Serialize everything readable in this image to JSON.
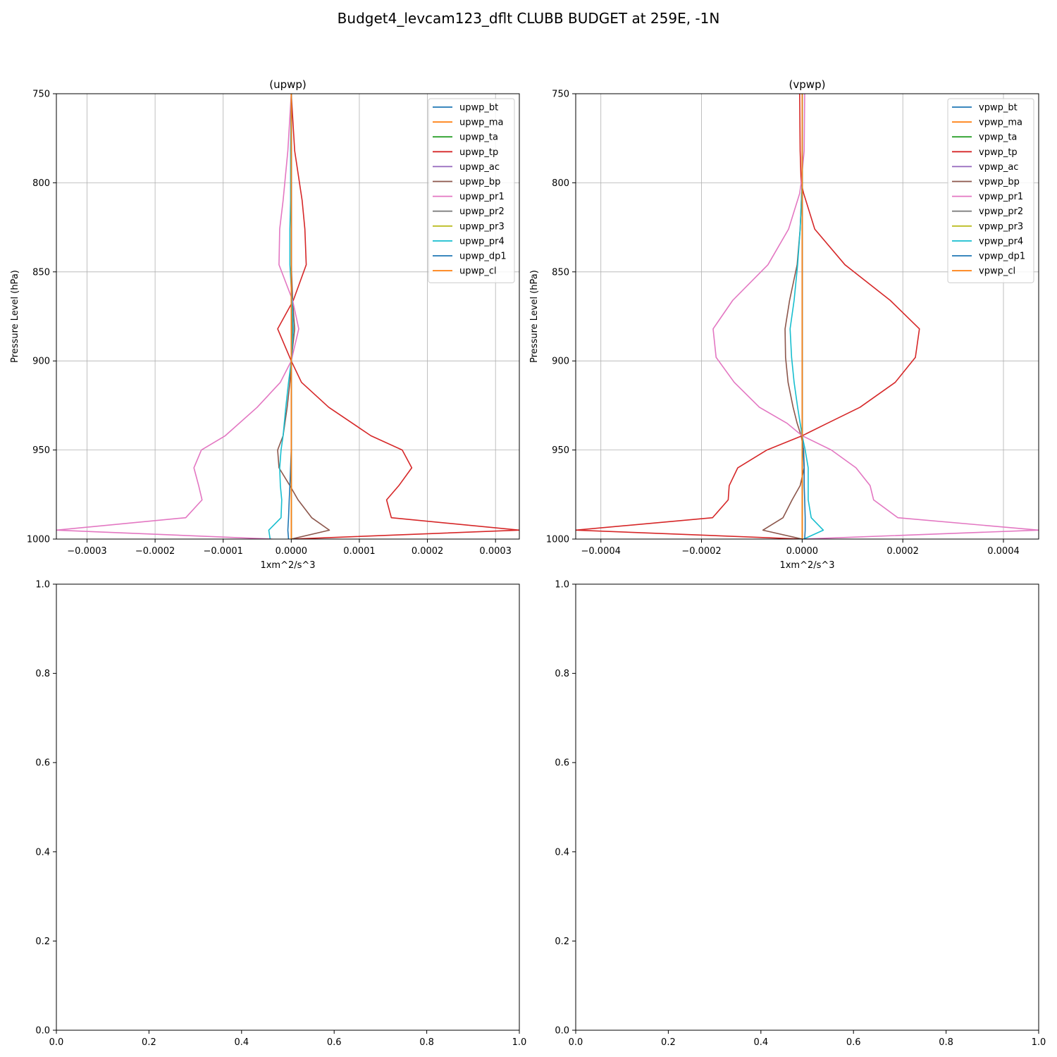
{
  "figure": {
    "title": "Budget4_levcam123_dflt CLUBB BUDGET at 259E, -1N"
  },
  "chart_data": [
    {
      "type": "line",
      "title": "(upwp)",
      "xlabel": "1xm^2/s^3",
      "ylabel": "Pressure Level (hPa)",
      "xlim": [
        -0.000345,
        0.000335
      ],
      "ylim": [
        1000,
        750
      ],
      "y_inverted": true,
      "x_ticks": [
        -0.0003,
        -0.0002,
        -0.0001,
        0.0,
        0.0001,
        0.0002,
        0.0003
      ],
      "x_tick_labels": [
        "−0.0003",
        "−0.0002",
        "−0.0001",
        "0.0000",
        "0.0001",
        "0.0002",
        "0.0003"
      ],
      "y_ticks": [
        750,
        800,
        850,
        900,
        950,
        1000
      ],
      "y_tick_labels": [
        "750",
        "800",
        "850",
        "900",
        "950",
        "1000"
      ],
      "grid": true,
      "legend_position": "upper right",
      "levels": [
        750,
        782,
        810,
        826,
        846,
        866,
        882,
        900,
        912,
        926,
        942,
        950,
        960,
        970,
        978,
        988,
        995,
        1000
      ],
      "series": [
        {
          "name": "upwp_bt",
          "color": "#1f77b4",
          "values": [
            0,
            0,
            0,
            0,
            0,
            0,
            0,
            0,
            0,
            0,
            0,
            0,
            0,
            0,
            0,
            0,
            0,
            0
          ]
        },
        {
          "name": "upwp_ma",
          "color": "#ff7f0e",
          "values": [
            0,
            0,
            0,
            0,
            0,
            0,
            0,
            0,
            0,
            0,
            0,
            0,
            0,
            0,
            0,
            0,
            0,
            0
          ]
        },
        {
          "name": "upwp_ta",
          "color": "#2ca02c",
          "values": [
            0,
            0,
            0,
            0,
            0,
            0,
            0,
            0,
            0,
            0,
            0,
            0,
            0,
            0,
            0,
            0,
            0,
            0
          ]
        },
        {
          "name": "upwp_tp",
          "color": "#d62728",
          "values": [
            0,
            5e-06,
            1.6e-05,
            2e-05,
            2.2e-05,
            3e-06,
            -2e-05,
            0,
            1.5e-05,
            5.5e-05,
            0.000117,
            0.000163,
            0.000177,
            0.000158,
            0.00014,
            0.000147,
            0.000335,
            0
          ]
        },
        {
          "name": "upwp_ac",
          "color": "#9467bd",
          "values": [
            0,
            0,
            0,
            0,
            0,
            0,
            0,
            0,
            0,
            0,
            0,
            0,
            0,
            0,
            0,
            0,
            0,
            0
          ]
        },
        {
          "name": "upwp_bp",
          "color": "#8c564b",
          "values": [
            0,
            0,
            0,
            0,
            0,
            2e-06,
            5e-06,
            0,
            -2e-06,
            -6e-06,
            -1.2e-05,
            -2e-05,
            -1.8e-05,
            -2e-06,
            1e-05,
            3e-05,
            5.6e-05,
            0
          ]
        },
        {
          "name": "upwp_pr1",
          "color": "#e377c2",
          "values": [
            0,
            -5e-06,
            -1.2e-05,
            -1.7e-05,
            -1.8e-05,
            2e-06,
            1.1e-05,
            0,
            -1.6e-05,
            -5e-05,
            -9.7e-05,
            -0.000132,
            -0.000143,
            -0.000136,
            -0.000131,
            -0.000155,
            -0.000345,
            -2.8e-05
          ]
        },
        {
          "name": "upwp_pr2",
          "color": "#7f7f7f",
          "values": [
            0,
            0,
            0,
            0,
            0,
            0,
            2e-06,
            0,
            0,
            0,
            0,
            0,
            0,
            0,
            0,
            0,
            0,
            0
          ]
        },
        {
          "name": "upwp_pr3",
          "color": "#bcbd22",
          "values": [
            0,
            0,
            0,
            0,
            0,
            0,
            0,
            0,
            0,
            0,
            0,
            0,
            0,
            0,
            0,
            0,
            0,
            0
          ]
        },
        {
          "name": "upwp_pr4",
          "color": "#17becf",
          "values": [
            0,
            -1e-06,
            -1e-06,
            -2e-06,
            -2e-06,
            1e-06,
            3e-06,
            0,
            -4e-06,
            -8e-06,
            -1.2e-05,
            -1.5e-05,
            -1.7e-05,
            -1.6e-05,
            -1.4e-05,
            -1.5e-05,
            -3.3e-05,
            -3.1e-05
          ]
        },
        {
          "name": "upwp_dp1",
          "color": "#1f77b4",
          "values": [
            0,
            0,
            0,
            0,
            0,
            0,
            0,
            0,
            0,
            0,
            0,
            0,
            -1e-06,
            -2e-06,
            -3e-06,
            -4e-06,
            -5e-06,
            -4e-06
          ]
        },
        {
          "name": "upwp_cl",
          "color": "#ff7f0e",
          "values": [
            0,
            0,
            0,
            0,
            0,
            0,
            0,
            0,
            0,
            0,
            0,
            0,
            0,
            0,
            0,
            0,
            0,
            0
          ]
        }
      ]
    },
    {
      "type": "line",
      "title": "(vpwp)",
      "xlabel": "1xm^2/s^3",
      "ylabel": "Pressure Level (hPa)",
      "xlim": [
        -0.00045,
        0.00047
      ],
      "ylim": [
        1000,
        750
      ],
      "y_inverted": true,
      "x_ticks": [
        -0.0004,
        -0.0002,
        0.0,
        0.0002,
        0.0004
      ],
      "x_tick_labels": [
        "−0.0004",
        "−0.0002",
        "0.0000",
        "0.0002",
        "0.0004"
      ],
      "y_ticks": [
        750,
        800,
        850,
        900,
        950,
        1000
      ],
      "y_tick_labels": [
        "750",
        "800",
        "850",
        "900",
        "950",
        "1000"
      ],
      "grid": true,
      "legend_position": "upper right",
      "levels": [
        750,
        782,
        800,
        806,
        826,
        846,
        866,
        882,
        898,
        912,
        926,
        935,
        942,
        950,
        960,
        970,
        978,
        988,
        995,
        1000
      ],
      "series": [
        {
          "name": "vpwp_bt",
          "color": "#1f77b4",
          "values": [
            0,
            0,
            0,
            0,
            0,
            0,
            0,
            0,
            0,
            0,
            0,
            0,
            0,
            0,
            0,
            0,
            0,
            0,
            0,
            0
          ]
        },
        {
          "name": "vpwp_ma",
          "color": "#ff7f0e",
          "values": [
            0,
            0,
            0,
            0,
            0,
            0,
            0,
            0,
            0,
            0,
            0,
            0,
            0,
            0,
            0,
            0,
            0,
            0,
            0,
            0
          ]
        },
        {
          "name": "vpwp_ta",
          "color": "#2ca02c",
          "values": [
            0,
            0,
            0,
            0,
            0,
            0,
            0,
            0,
            0,
            0,
            0,
            0,
            0,
            0,
            0,
            0,
            0,
            0,
            0,
            0
          ]
        },
        {
          "name": "vpwp_tp",
          "color": "#d62728",
          "values": [
            -5e-06,
            -4e-06,
            -2e-06,
            3e-06,
            2.5e-05,
            8.5e-05,
            0.000175,
            0.000233,
            0.000225,
            0.000185,
            0.000115,
            5e-05,
            0,
            -7e-05,
            -0.000128,
            -0.000145,
            -0.000147,
            -0.000178,
            -0.00045,
            0
          ]
        },
        {
          "name": "vpwp_ac",
          "color": "#9467bd",
          "values": [
            0,
            0,
            0,
            0,
            0,
            0,
            0,
            0,
            0,
            0,
            0,
            0,
            0,
            0,
            0,
            0,
            0,
            0,
            0,
            0
          ]
        },
        {
          "name": "vpwp_bp",
          "color": "#8c564b",
          "values": [
            0,
            0,
            0,
            -1e-06,
            -4e-06,
            -1e-05,
            -2.5e-05,
            -3.4e-05,
            -3.3e-05,
            -2.8e-05,
            -1.8e-05,
            -1e-05,
            -2e-06,
            3e-06,
            4e-06,
            -4e-06,
            -2e-05,
            -3.8e-05,
            -7.8e-05,
            0
          ]
        },
        {
          "name": "vpwp_pr1",
          "color": "#e377c2",
          "values": [
            5e-06,
            4e-06,
            -2e-06,
            -5e-06,
            -2.7e-05,
            -6.8e-05,
            -0.000138,
            -0.000177,
            -0.000171,
            -0.000135,
            -8.5e-05,
            -3e-05,
            0,
            5.8e-05,
            0.000107,
            0.000135,
            0.000142,
            0.00019,
            0.00047,
            0
          ]
        },
        {
          "name": "vpwp_pr2",
          "color": "#7f7f7f",
          "values": [
            0,
            0,
            0,
            0,
            0,
            0,
            0,
            0,
            0,
            0,
            0,
            0,
            0,
            0,
            0,
            0,
            0,
            0,
            0,
            0
          ]
        },
        {
          "name": "vpwp_pr3",
          "color": "#bcbd22",
          "values": [
            0,
            0,
            0,
            0,
            0,
            0,
            0,
            0,
            0,
            0,
            0,
            0,
            0,
            0,
            0,
            0,
            0,
            0,
            0,
            0
          ]
        },
        {
          "name": "vpwp_pr4",
          "color": "#17becf",
          "values": [
            0,
            0,
            0,
            -1e-06,
            -4e-06,
            -9e-06,
            -1.6e-05,
            -2.4e-05,
            -2.1e-05,
            -1.6e-05,
            -9e-06,
            -4e-06,
            0,
            6e-06,
            1.2e-05,
            1.2e-05,
            1.2e-05,
            1.8e-05,
            4.2e-05,
            3e-06
          ]
        },
        {
          "name": "vpwp_dp1",
          "color": "#1f77b4",
          "values": [
            0,
            0,
            0,
            0,
            0,
            0,
            0,
            0,
            0,
            0,
            0,
            0,
            0,
            2e-06,
            4e-06,
            4e-06,
            5e-06,
            6e-06,
            6e-06,
            5e-06
          ]
        },
        {
          "name": "vpwp_cl",
          "color": "#ff7f0e",
          "values": [
            0,
            0,
            0,
            0,
            0,
            0,
            0,
            0,
            0,
            0,
            0,
            0,
            0,
            0,
            0,
            0,
            0,
            0,
            0,
            0
          ]
        }
      ]
    },
    {
      "type": "line",
      "title": "",
      "xlim": [
        0,
        1
      ],
      "ylim": [
        0,
        1
      ],
      "x_ticks": [
        0,
        0.2,
        0.4,
        0.6,
        0.8,
        1.0
      ],
      "x_tick_labels": [
        "0.0",
        "0.2",
        "0.4",
        "0.6",
        "0.8",
        "1.0"
      ],
      "y_ticks": [
        0,
        0.2,
        0.4,
        0.6,
        0.8,
        1.0
      ],
      "y_tick_labels": [
        "0.0",
        "0.2",
        "0.4",
        "0.6",
        "0.8",
        "1.0"
      ],
      "grid": false,
      "series": []
    },
    {
      "type": "line",
      "title": "",
      "xlim": [
        0,
        1
      ],
      "ylim": [
        0,
        1
      ],
      "x_ticks": [
        0,
        0.2,
        0.4,
        0.6,
        0.8,
        1.0
      ],
      "x_tick_labels": [
        "0.0",
        "0.2",
        "0.4",
        "0.6",
        "0.8",
        "1.0"
      ],
      "y_ticks": [
        0,
        0.2,
        0.4,
        0.6,
        0.8,
        1.0
      ],
      "y_tick_labels": [
        "0.0",
        "0.2",
        "0.4",
        "0.6",
        "0.8",
        "1.0"
      ],
      "grid": false,
      "series": []
    }
  ]
}
